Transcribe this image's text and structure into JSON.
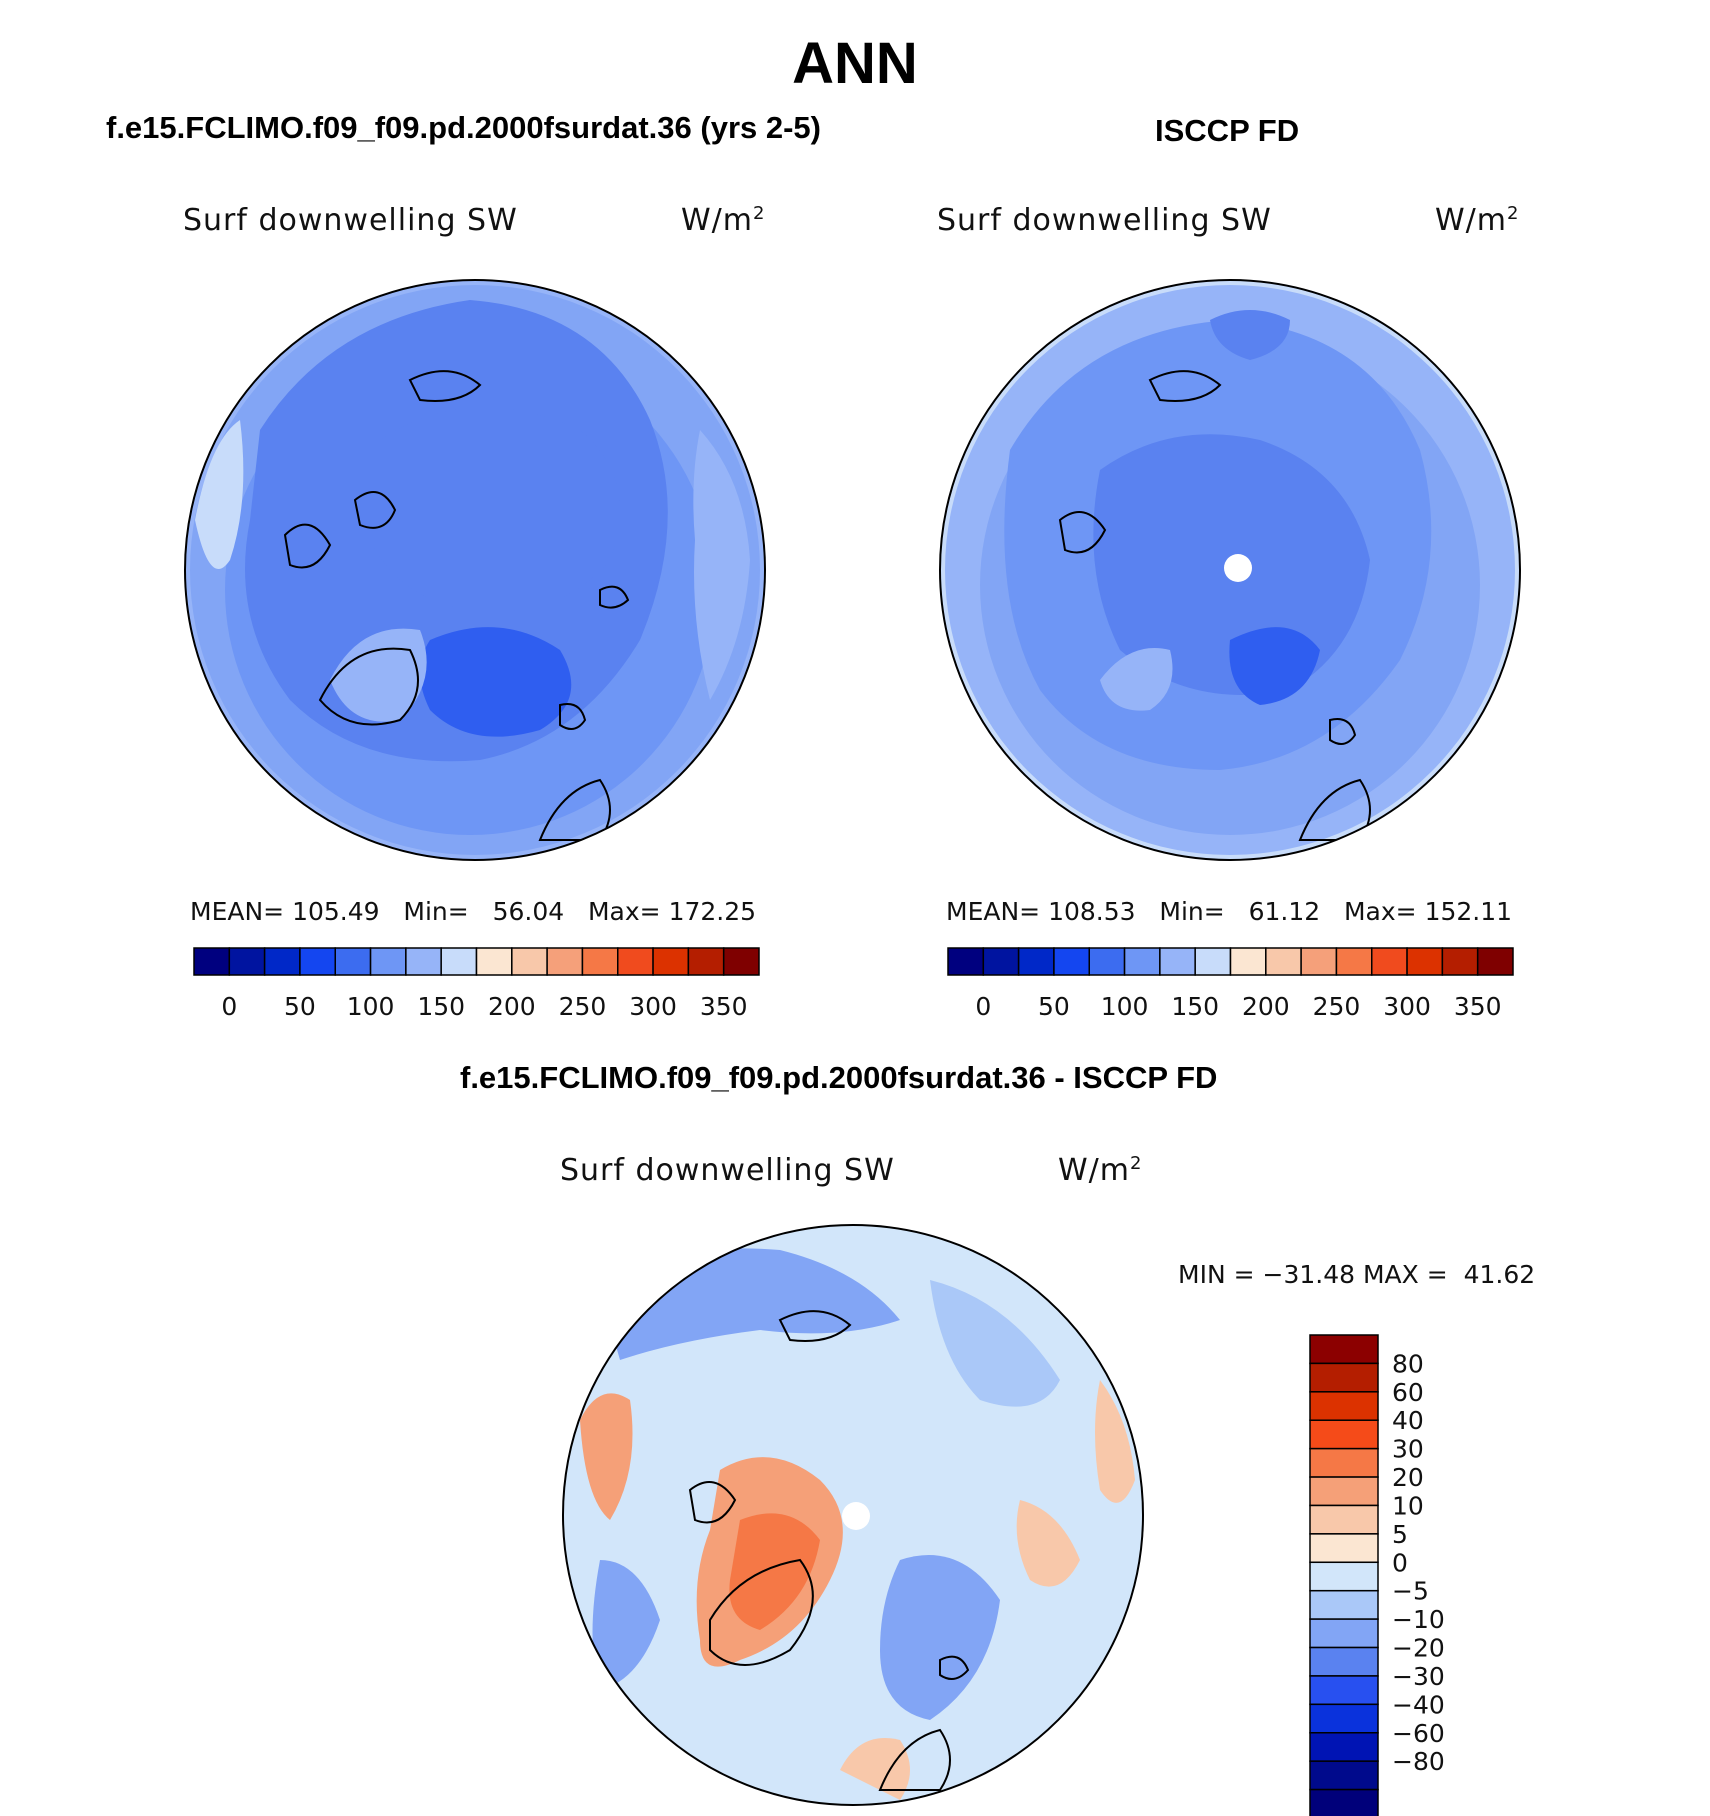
{
  "title": "ANN",
  "panels": [
    {
      "id": "model",
      "header": "f.e15.FCLIMO.f09_f09.pd.2000fsurdat.36 (yrs 2-5)",
      "variable": "Surf downwelling SW",
      "units_base": "W/m",
      "units_exp": "2",
      "mean_label": "MEAN=",
      "mean": "105.49",
      "min_label": "Min=",
      "min": "56.04",
      "max_label": "Max=",
      "max": "172.25"
    },
    {
      "id": "obs",
      "header": "ISCCP FD",
      "variable": "Surf downwelling SW",
      "units_base": "W/m",
      "units_exp": "2",
      "mean_label": "MEAN=",
      "mean": "108.53",
      "min_label": "Min=",
      "min": "61.12",
      "max_label": "Max=",
      "max": "152.11"
    }
  ],
  "diff": {
    "header": "f.e15.FCLIMO.f09_f09.pd.2000fsurdat.36 - ISCCP FD",
    "variable": "Surf downwelling SW",
    "units_base": "W/m",
    "units_exp": "2",
    "min_label": "MIN =",
    "min": "−31.48",
    "max_label": "MAX =",
    "max": "41.62"
  },
  "colorbar_main": {
    "colors": [
      "#00007f",
      "#0014a0",
      "#0028c8",
      "#1446f0",
      "#3c6cf0",
      "#6e96f5",
      "#96b4f8",
      "#c8dcfa",
      "#fbe6d2",
      "#f8c8aa",
      "#f5a07a",
      "#f57846",
      "#f04b1e",
      "#dc3200",
      "#b41e00",
      "#7f0000"
    ],
    "tick_labels": [
      "0",
      "50",
      "100",
      "150",
      "200",
      "250",
      "300",
      "350"
    ]
  },
  "colorbar_diff": {
    "colors_top_to_bottom": [
      "#8c0000",
      "#b41e00",
      "#dc3200",
      "#f54b19",
      "#f57846",
      "#f5a078",
      "#f8c8aa",
      "#fbe6d2",
      "#d2e6fa",
      "#aac8f8",
      "#82a5f5",
      "#5a82f0",
      "#2850f0",
      "#0a32dc",
      "#0014b4",
      "#000a8c",
      "#00007a"
    ],
    "tick_labels": [
      "80",
      "60",
      "40",
      "30",
      "20",
      "10",
      "5",
      "0",
      "−5",
      "−10",
      "−20",
      "−30",
      "−40",
      "−60",
      "−80"
    ]
  },
  "maps": {
    "model_map": "Arctic polar stereographic field, blue tones",
    "obs_map": "Arctic polar stereographic field, blue tones",
    "diff_map": "Arctic difference field, blue and orange tones"
  }
}
